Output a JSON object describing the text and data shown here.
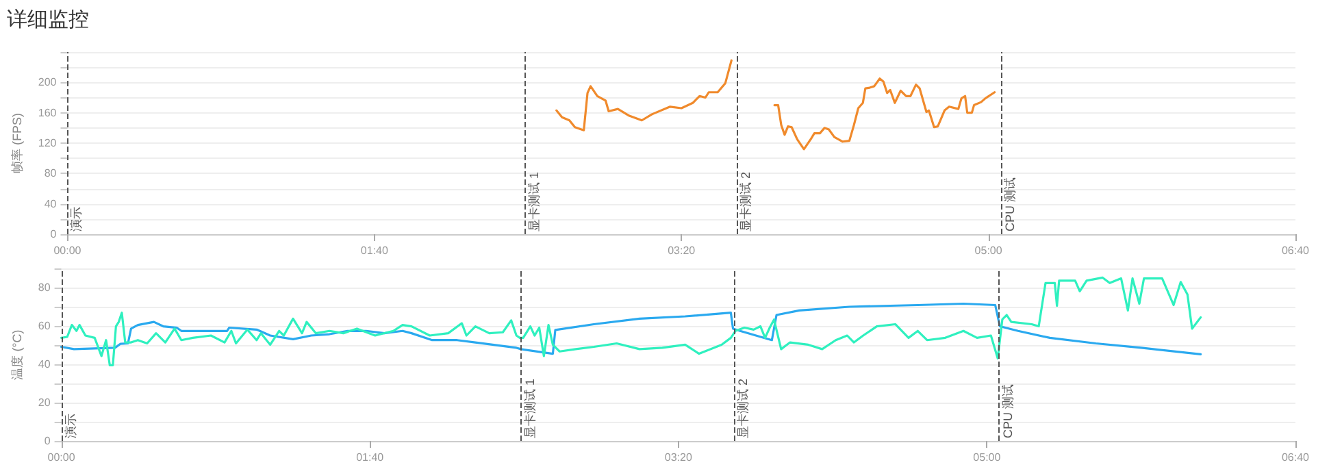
{
  "chart_data": [
    {
      "type": "line",
      "title": "详细监控",
      "ylabel": "帧率 (FPS)",
      "marker": "none",
      "grid": "y",
      "xlim": [
        0,
        400
      ],
      "xticks": [
        {
          "value": 0,
          "label": "00:00"
        },
        {
          "value": 100,
          "label": "01:40"
        },
        {
          "value": 200,
          "label": "03:20"
        },
        {
          "value": 300,
          "label": "05:00"
        },
        {
          "value": 400,
          "label": "06:40"
        }
      ],
      "ylim": [
        0,
        240
      ],
      "yticks": [
        0,
        {
          "value": 20,
          "label": null
        },
        40,
        {
          "value": 60,
          "label": null
        },
        80,
        {
          "value": 100,
          "label": null
        },
        120,
        {
          "value": 140,
          "label": null
        },
        160,
        {
          "value": 180,
          "label": null
        },
        200,
        {
          "value": 220,
          "label": null
        },
        {
          "value": 240,
          "label": null
        }
      ],
      "ref_lines": [
        {
          "axis": "x",
          "value": 0,
          "label": "演示",
          "color": "#555555",
          "line_style": "dashed"
        },
        {
          "axis": "x",
          "value": 149,
          "label": "显卡测试 1",
          "color": "#555555",
          "line_style": "dashed"
        },
        {
          "axis": "x",
          "value": 218,
          "label": "显卡测试 2",
          "color": "#555555",
          "line_style": "dashed"
        },
        {
          "axis": "x",
          "value": 304,
          "label": "CPU 测试",
          "color": "#555555",
          "line_style": "dashed"
        }
      ],
      "series": [
        {
          "color": "#f08a2c",
          "x": [
            159.3,
            161.1,
            163.5,
            165.3,
            168.2,
            169.4,
            170.4,
            172.6,
            175.3,
            176.3,
            179.3,
            183,
            187.1,
            190.4,
            196.3,
            200,
            203.7,
            205.9,
            207.8,
            208.9,
            211.8,
            214.3,
            216.3,
            223,
            230.3,
            231.5,
            232.5,
            233.6,
            234.7,
            235.9,
            237.7,
            239.9,
            242.1,
            243.3,
            245.1,
            246.6,
            248,
            249.8,
            252.5,
            254.7,
            256.2,
            257.6,
            259.1,
            259.9,
            261.3,
            262.8,
            264.6,
            265.8,
            267,
            268,
            269.5,
            271.4,
            273.2,
            274.6,
            276.4,
            277.6,
            279.8,
            280.6,
            282.3,
            283.5,
            285.7,
            287.2,
            290.2,
            291.2,
            292.4,
            293.1,
            294.6,
            295.3,
            297.6,
            299,
            302
          ],
          "values": [
            163,
            154,
            150,
            141,
            137,
            186,
            195,
            182,
            176,
            162,
            165,
            156,
            150,
            158,
            168,
            166,
            173,
            182,
            180,
            187,
            187,
            199,
            229,
            null,
            170,
            170,
            144,
            131,
            142,
            141,
            125,
            112,
            125,
            133,
            133,
            140,
            138,
            128,
            122,
            123,
            144,
            166,
            173,
            192,
            193,
            195,
            205,
            201,
            186,
            190,
            173,
            189,
            182,
            182,
            197,
            192,
            161,
            163,
            141,
            142,
            163,
            168,
            165,
            179,
            182,
            160,
            160,
            170,
            174,
            179,
            187
          ]
        }
      ]
    },
    {
      "type": "line",
      "ylabel": "温度 (°C)",
      "marker": "none",
      "grid": "y",
      "xlim": [
        0,
        400
      ],
      "xticks": [
        {
          "value": 0,
          "label": "00:00"
        },
        {
          "value": 100,
          "label": "01:40"
        },
        {
          "value": 200,
          "label": "03:20"
        },
        {
          "value": 300,
          "label": "05:00"
        },
        {
          "value": 400,
          "label": "06:40"
        }
      ],
      "ylim": [
        0,
        90
      ],
      "yticks": [
        0,
        {
          "value": 10,
          "label": null
        },
        20,
        {
          "value": 30,
          "label": null
        },
        40,
        {
          "value": 50,
          "label": null
        },
        60,
        {
          "value": 70,
          "label": null
        },
        80,
        {
          "value": 90,
          "label": null
        }
      ],
      "ref_lines": [
        {
          "axis": "x",
          "value": 0,
          "label": "演示",
          "color": "#555555",
          "line_style": "dashed"
        },
        {
          "axis": "x",
          "value": 149,
          "label": "显卡测试 1",
          "color": "#555555",
          "line_style": "dashed"
        },
        {
          "axis": "x",
          "value": 218,
          "label": "显卡测试 2",
          "color": "#555555",
          "line_style": "dashed"
        },
        {
          "axis": "x",
          "value": 304,
          "label": "CPU 测试",
          "color": "#555555",
          "line_style": "dashed"
        }
      ],
      "series": [
        {
          "color": "#2aa9ef",
          "x": [
            0,
            4.1,
            17.4,
            19.2,
            21.6,
            22.6,
            24.8,
            30,
            33,
            37.4,
            38.9,
            53.7,
            54.4,
            63.3,
            67.7,
            75.1,
            81,
            86.9,
            92.8,
            98.8,
            104.7,
            110.6,
            113.5,
            120.2,
            128.3,
            134.2,
            147.5,
            149,
            159.3,
            160.1,
            172.6,
            187.4,
            202.2,
            217,
            217.7,
            220,
            230.3,
            231.8,
            239.2,
            255.4,
            277.6,
            292.4,
            302.7,
            304.2,
            310.1,
            320.4,
            335.3,
            350,
            369.3
          ],
          "values": [
            49.1,
            47.9,
            48.6,
            50.7,
            50.9,
            58.6,
            60.5,
            62.1,
            59.8,
            59.1,
            57.4,
            57.4,
            59.1,
            58.1,
            55,
            53.1,
            55,
            55.7,
            57.4,
            57.4,
            56.2,
            57.4,
            56.2,
            52.6,
            52.6,
            51.4,
            48.6,
            47.9,
            45.5,
            57.9,
            60.9,
            63.8,
            65,
            66.9,
            58.6,
            57.4,
            52.6,
            65.7,
            68.1,
            70,
            70.9,
            71.6,
            70.9,
            59.8,
            57.4,
            53.8,
            50.9,
            48.6,
            45.2
          ]
        },
        {
          "color": "#2ff0bf",
          "x": [
            0,
            1.9,
            3.4,
            4.9,
            5.9,
            7.8,
            10.8,
            13,
            14.5,
            15.7,
            16.7,
            17.7,
            18.6,
            19.6,
            20.7,
            22.6,
            24.8,
            27.8,
            30.7,
            33.7,
            36.7,
            38.9,
            42.6,
            48.5,
            52.9,
            55.1,
            56.6,
            60.3,
            63.3,
            64.7,
            67.7,
            70.6,
            72.1,
            75.1,
            78,
            79.5,
            82.5,
            86.9,
            91.4,
            95.8,
            101.7,
            107.6,
            110.6,
            113.5,
            119.4,
            125.4,
            129.8,
            131.3,
            134.2,
            138.7,
            143.1,
            145.8,
            147.5,
            148.6,
            149.7,
            152,
            153.4,
            154.9,
            156.4,
            157.9,
            159.3,
            161.5,
            166.7,
            172.6,
            180,
            187.4,
            194.8,
            202.2,
            206.7,
            214,
            217,
            218.5,
            221.4,
            224.4,
            226.6,
            228.1,
            229.6,
            231,
            233.3,
            236.2,
            242.1,
            246.6,
            251,
            254.7,
            256.9,
            259.9,
            264.3,
            270.3,
            274.6,
            277.6,
            280.6,
            286.5,
            292.4,
            296.8,
            301.3,
            303.5,
            305,
            306.4,
            307.9,
            314.5,
            316.8,
            319,
            322,
            322.7,
            323.4,
            328.6,
            330.1,
            332.3,
            337.5,
            339.8,
            343.5,
            345.7,
            347.2,
            349.4,
            350.9,
            356.8,
            360.5,
            362.8,
            365,
            366.5,
            369.3
          ],
          "values": [
            53.8,
            54.3,
            60.5,
            57.4,
            60.5,
            55,
            53.8,
            44.3,
            52.6,
            39.5,
            39.5,
            59.8,
            62.1,
            66.9,
            51.4,
            51.4,
            52.6,
            50.9,
            56.2,
            51.4,
            58.6,
            52.6,
            53.8,
            55,
            51.4,
            57.4,
            50.9,
            58.1,
            52.6,
            56.2,
            50.2,
            57.4,
            55,
            63.8,
            56.2,
            62.1,
            56.2,
            57.4,
            56.2,
            58.6,
            55,
            57.4,
            60.5,
            59.8,
            55,
            56.2,
            61.4,
            55,
            59.8,
            56.2,
            56.7,
            62.9,
            55,
            53.8,
            53.8,
            59.8,
            55,
            59.1,
            44.3,
            60.5,
            50.2,
            46.7,
            47.9,
            49.1,
            50.9,
            47.9,
            48.6,
            50.2,
            45.5,
            50.2,
            53.8,
            57.4,
            59.1,
            58.1,
            59.8,
            53.8,
            59.1,
            63.3,
            47.9,
            51.4,
            50.2,
            47.9,
            52.6,
            55,
            51.4,
            55,
            59.8,
            60.9,
            53.8,
            57.4,
            52.6,
            53.8,
            57.4,
            53.8,
            55,
            43.1,
            63.4,
            65.7,
            62.1,
            60.9,
            59.8,
            82.4,
            82.4,
            70.5,
            83.6,
            83.6,
            78.1,
            83.6,
            85.2,
            82.4,
            84.8,
            68.1,
            84.8,
            71.6,
            84.8,
            84.8,
            70.9,
            82.9,
            76.4,
            58.6,
            64.5
          ]
        }
      ]
    }
  ]
}
